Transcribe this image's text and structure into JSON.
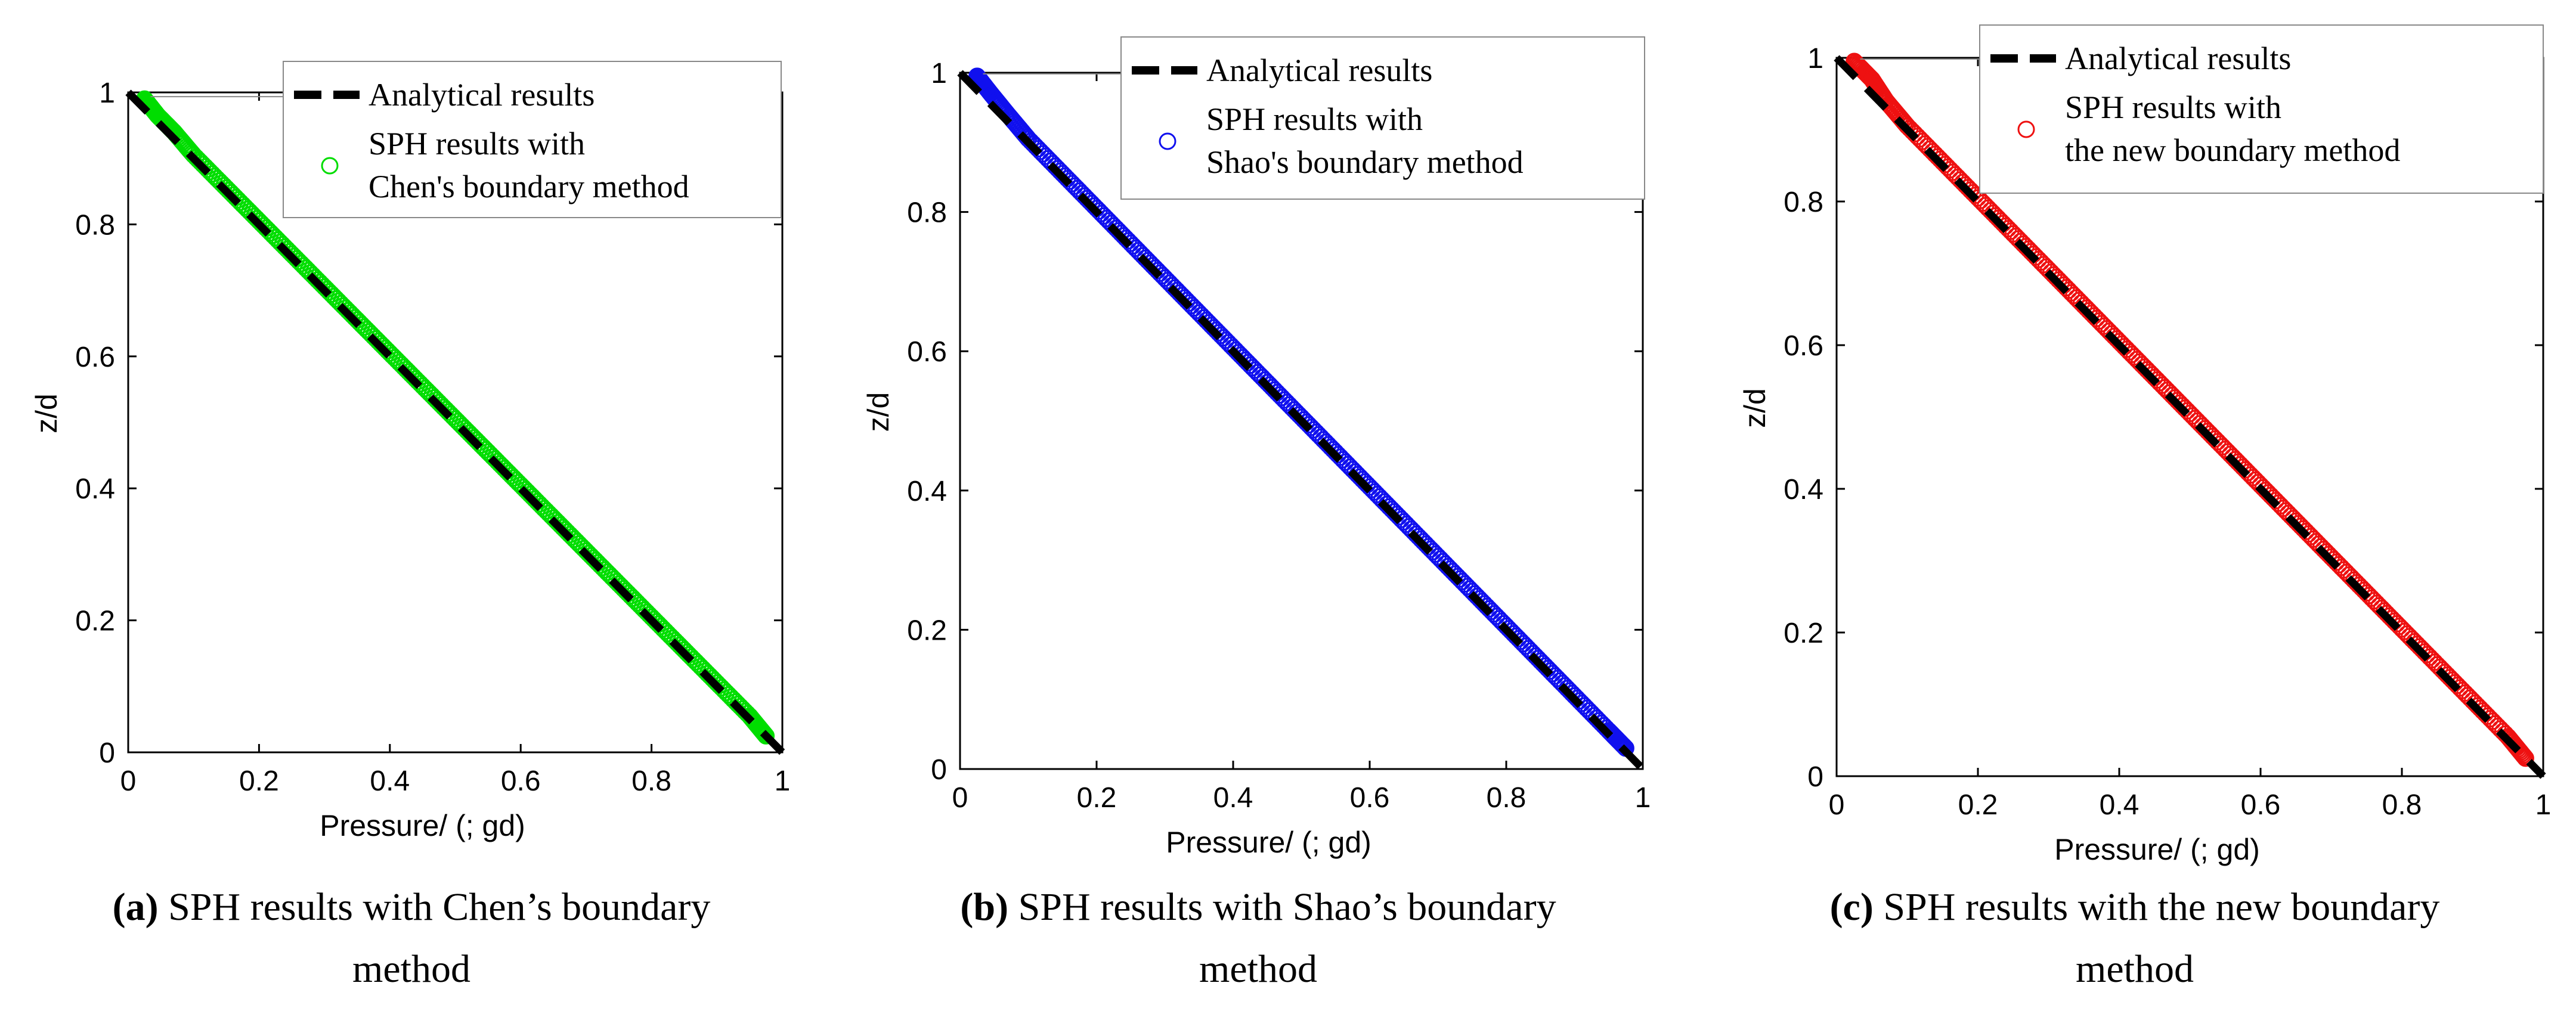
{
  "chart_data": [
    {
      "type": "line+scatter",
      "panel": "a",
      "xlabel": "Pressure/ (; gd)",
      "ylabel": "z/d",
      "xlim": [
        0,
        1
      ],
      "ylim": [
        0,
        1
      ],
      "xticks": [
        "0",
        "0.2",
        "0.4",
        "0.6",
        "0.8",
        "1"
      ],
      "yticks": [
        "0",
        "0.2",
        "0.4",
        "0.6",
        "0.8",
        "1"
      ],
      "marker_color": "#00dd00",
      "legend_entries": [
        "Analytical results",
        "SPH results with",
        "Chen's boundary method"
      ],
      "series": [
        {
          "name": "Analytical results",
          "style": "dashed-line",
          "x": [
            0,
            1
          ],
          "y": [
            1,
            0
          ]
        },
        {
          "name": "SPH results with Chen's boundary method",
          "style": "circle-markers",
          "x": [
            0.025,
            0.045,
            0.07,
            0.1,
            0.15,
            0.2,
            0.25,
            0.3,
            0.35,
            0.4,
            0.45,
            0.5,
            0.55,
            0.6,
            0.65,
            0.7,
            0.75,
            0.8,
            0.85,
            0.9,
            0.95,
            0.975
          ],
          "y": [
            0.99,
            0.965,
            0.94,
            0.905,
            0.855,
            0.805,
            0.755,
            0.705,
            0.655,
            0.605,
            0.555,
            0.505,
            0.455,
            0.405,
            0.355,
            0.305,
            0.255,
            0.205,
            0.155,
            0.105,
            0.055,
            0.025
          ]
        }
      ],
      "caption_label": "(a)",
      "caption_text": " SPH results with Chen’s boundary",
      "caption_line2": "method"
    },
    {
      "type": "line+scatter",
      "panel": "b",
      "xlabel": "Pressure/ (; gd)",
      "ylabel": "z/d",
      "xlim": [
        0,
        1
      ],
      "ylim": [
        0,
        1
      ],
      "xticks": [
        "0",
        "0.2",
        "0.4",
        "0.6",
        "0.8",
        "1"
      ],
      "yticks": [
        "0",
        "0.2",
        "0.4",
        "0.6",
        "0.8",
        "1"
      ],
      "marker_color": "#1010ee",
      "legend_entries": [
        "Analytical results",
        "SPH results with",
        "Shao's  boundary method"
      ],
      "series": [
        {
          "name": "Analytical results",
          "style": "dashed-line",
          "x": [
            0,
            1
          ],
          "y": [
            1,
            0
          ]
        },
        {
          "name": "SPH results with Shao's boundary method",
          "style": "circle-markers",
          "x": [
            0.025,
            0.045,
            0.07,
            0.1,
            0.15,
            0.2,
            0.25,
            0.3,
            0.35,
            0.4,
            0.45,
            0.5,
            0.55,
            0.6,
            0.65,
            0.7,
            0.75,
            0.8,
            0.85,
            0.9,
            0.95,
            0.975
          ],
          "y": [
            0.995,
            0.97,
            0.94,
            0.905,
            0.855,
            0.805,
            0.755,
            0.705,
            0.655,
            0.605,
            0.555,
            0.505,
            0.455,
            0.405,
            0.355,
            0.305,
            0.255,
            0.205,
            0.155,
            0.105,
            0.055,
            0.03
          ]
        }
      ],
      "caption_label": "(b)",
      "caption_text": " SPH results with Shao’s boundary",
      "caption_line2": "method"
    },
    {
      "type": "line+scatter",
      "panel": "c",
      "xlabel": "Pressure/ (; gd)",
      "ylabel": "z/d",
      "xlim": [
        0,
        1
      ],
      "ylim": [
        0,
        1
      ],
      "xticks": [
        "0",
        "0.2",
        "0.4",
        "0.6",
        "0.8",
        "1"
      ],
      "yticks": [
        "0",
        "0.2",
        "0.4",
        "0.6",
        "0.8",
        "1"
      ],
      "marker_color": "#ee1111",
      "legend_entries": [
        "Analytical results",
        "SPH results with",
        "the new boundary method"
      ],
      "series": [
        {
          "name": "Analytical results",
          "style": "dashed-line",
          "x": [
            0,
            1
          ],
          "y": [
            1,
            0
          ]
        },
        {
          "name": "SPH results with the new boundary method",
          "style": "circle-markers",
          "x": [
            0.025,
            0.05,
            0.07,
            0.1,
            0.15,
            0.2,
            0.25,
            0.3,
            0.35,
            0.4,
            0.45,
            0.5,
            0.55,
            0.6,
            0.65,
            0.7,
            0.75,
            0.8,
            0.85,
            0.9,
            0.95,
            0.975
          ],
          "y": [
            0.995,
            0.97,
            0.94,
            0.905,
            0.855,
            0.805,
            0.755,
            0.705,
            0.655,
            0.605,
            0.555,
            0.505,
            0.455,
            0.405,
            0.355,
            0.305,
            0.255,
            0.205,
            0.155,
            0.105,
            0.055,
            0.025
          ]
        }
      ],
      "caption_label": "(c)",
      "caption_text": " SPH results with the new boundary",
      "caption_line2": "method"
    }
  ]
}
